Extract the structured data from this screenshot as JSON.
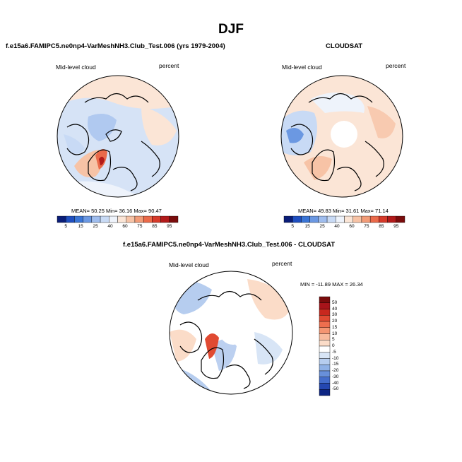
{
  "figure": {
    "title": "DJF"
  },
  "panels": [
    {
      "title": "f.e15a6.FAMIPC5.ne0np4-VarMeshNH3.Club_Test.006 (yrs 1979-2004)",
      "variable": "Mid-level cloud",
      "units": "percent",
      "stats": "MEAN=  50.25  Min=  36.16  Max=  90.47",
      "colorbar": {
        "levels": [
          "5",
          "15",
          "25",
          "40",
          "60",
          "75",
          "85",
          "95"
        ],
        "colors": [
          "#0a1d78",
          "#1f4fc0",
          "#3a75d6",
          "#6b98e2",
          "#9fbdee",
          "#c8daf5",
          "#eef3fb",
          "#fbe5d6",
          "#f7c3a6",
          "#f29c78",
          "#ea6a4a",
          "#d63a2a",
          "#b21a1a",
          "#7a0c0c"
        ]
      }
    },
    {
      "title": "CLOUDSAT",
      "variable": "Mid-level cloud",
      "units": "percent",
      "stats": "MEAN=  49.83  Min=  31.61  Max=  71.14",
      "colorbar": {
        "levels": [
          "5",
          "15",
          "25",
          "40",
          "60",
          "75",
          "85",
          "95"
        ],
        "colors": [
          "#0a1d78",
          "#1f4fc0",
          "#3a75d6",
          "#6b98e2",
          "#9fbdee",
          "#c8daf5",
          "#eef3fb",
          "#fbe5d6",
          "#f7c3a6",
          "#f29c78",
          "#ea6a4a",
          "#d63a2a",
          "#b21a1a",
          "#7a0c0c"
        ]
      }
    },
    {
      "title": "f.e15a6.FAMIPC5.ne0np4-VarMeshNH3.Club_Test.006 - CLOUDSAT",
      "variable": "Mid-level cloud",
      "units": "percent",
      "stats": "MIN = -11.89  MAX =  26.34",
      "colorbar": {
        "levels": [
          "50",
          "40",
          "30",
          "20",
          "15",
          "10",
          "5",
          "0",
          "-5",
          "-10",
          "-15",
          "-20",
          "-30",
          "-40",
          "-50"
        ],
        "colors": [
          "#7a0c0c",
          "#a8141a",
          "#c8281e",
          "#e04a32",
          "#ee6e4e",
          "#f49572",
          "#f8bb9e",
          "#fbdcc8",
          "#ffffff",
          "#d8e5f6",
          "#b6cdef",
          "#8fb1e6",
          "#6890da",
          "#446dcb",
          "#2447b0",
          "#0d2584"
        ]
      }
    }
  ]
}
